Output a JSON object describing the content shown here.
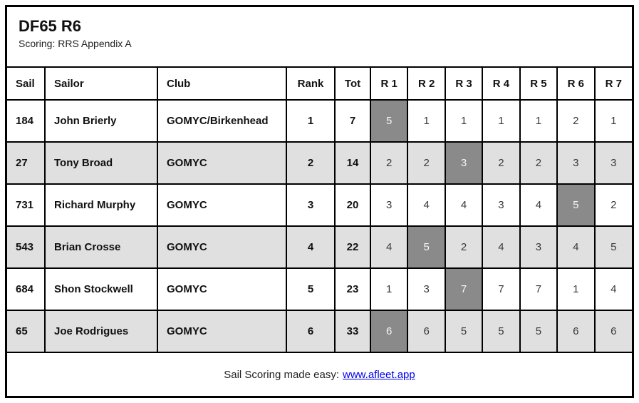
{
  "header": {
    "title": "DF65 R6",
    "scoring": "Scoring: RRS Appendix A"
  },
  "table": {
    "columns": [
      "Sail",
      "Sailor",
      "Club",
      "Rank",
      "Tot",
      "R 1",
      "R 2",
      "R 3",
      "R 4",
      "R 5",
      "R 6",
      "R 7"
    ],
    "rows": [
      {
        "sail": "184",
        "sailor": "John Brierly",
        "club": "GOMYC/Birkenhead",
        "rank": "1",
        "tot": "7",
        "races": [
          5,
          1,
          1,
          1,
          1,
          2,
          1
        ],
        "discard_index": 0
      },
      {
        "sail": "27",
        "sailor": "Tony Broad",
        "club": "GOMYC",
        "rank": "2",
        "tot": "14",
        "races": [
          2,
          2,
          3,
          2,
          2,
          3,
          3
        ],
        "discard_index": 2
      },
      {
        "sail": "731",
        "sailor": "Richard Murphy",
        "club": "GOMYC",
        "rank": "3",
        "tot": "20",
        "races": [
          3,
          4,
          4,
          3,
          4,
          5,
          2
        ],
        "discard_index": 5
      },
      {
        "sail": "543",
        "sailor": "Brian Crosse",
        "club": "GOMYC",
        "rank": "4",
        "tot": "22",
        "races": [
          4,
          5,
          2,
          4,
          3,
          4,
          5
        ],
        "discard_index": 1
      },
      {
        "sail": "684",
        "sailor": "Shon Stockwell",
        "club": "GOMYC",
        "rank": "5",
        "tot": "23",
        "races": [
          1,
          3,
          7,
          7,
          7,
          1,
          4
        ],
        "discard_index": 2
      },
      {
        "sail": "65",
        "sailor": "Joe Rodrigues",
        "club": "GOMYC",
        "rank": "6",
        "tot": "33",
        "races": [
          6,
          6,
          5,
          5,
          5,
          6,
          6
        ],
        "discard_index": 0
      }
    ]
  },
  "footer": {
    "text": "Sail Scoring made easy:",
    "link": "www.afleet.app"
  },
  "colors": {
    "zebra_row": "#e0e0e0",
    "discard_cell": "#8a8a8a",
    "discard_text": "#f5f5f5",
    "border": "#000000",
    "link": "#0000ee"
  }
}
